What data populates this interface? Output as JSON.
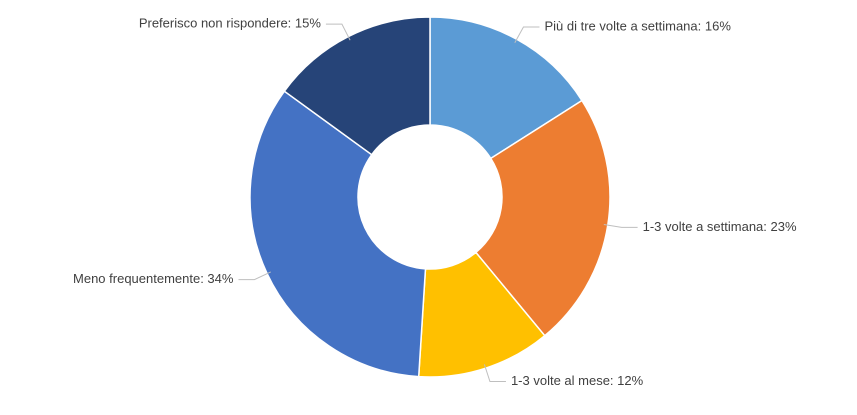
{
  "chart_data": {
    "type": "donut",
    "categories": [
      "Più di tre volte a settimana",
      "1-3 volte a settimana",
      "1-3 volte al mese",
      "Meno frequentemente",
      "Preferisco non rispondere"
    ],
    "values": [
      16,
      23,
      12,
      34,
      15
    ],
    "value_labels": [
      "Più di tre volte a settimana: 16%",
      "1-3 volte a settimana: 23%",
      "1-3 volte al mese: 12%",
      "Meno frequentemente: 34%",
      "Preferisco non rispondere: 15%"
    ],
    "colors": [
      "#5b9bd5",
      "#ed7d31",
      "#ffc000",
      "#4472c4",
      "#264478"
    ]
  }
}
